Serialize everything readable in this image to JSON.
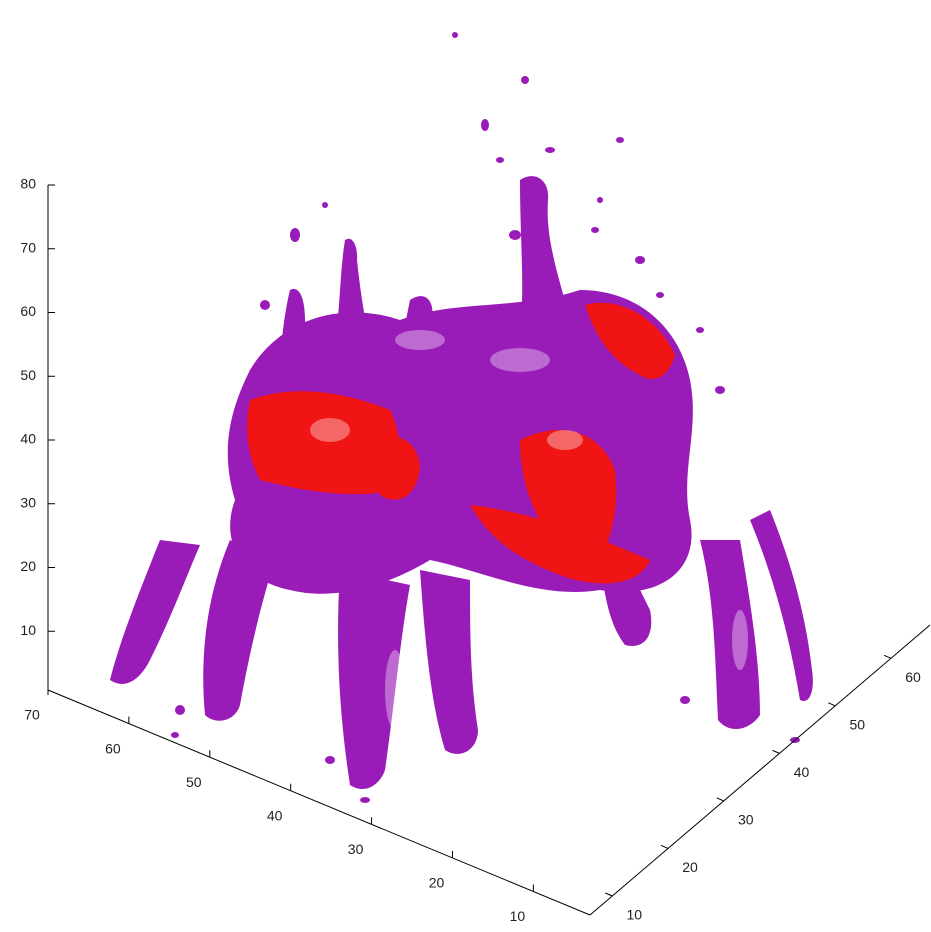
{
  "chart_data": {
    "type": "isosurface",
    "xlim": [
      70,
      3
    ],
    "xticks": [
      70,
      60,
      50,
      40,
      30,
      20,
      10
    ],
    "ylim": [
      6,
      67
    ],
    "yticks": [
      10,
      20,
      30,
      40,
      50,
      60
    ],
    "zlim": [
      0,
      80
    ],
    "zticks": [
      10,
      20,
      30,
      40,
      50,
      60,
      70,
      80
    ],
    "colors": [
      "#9a1cb8",
      "#f01414"
    ]
  }
}
